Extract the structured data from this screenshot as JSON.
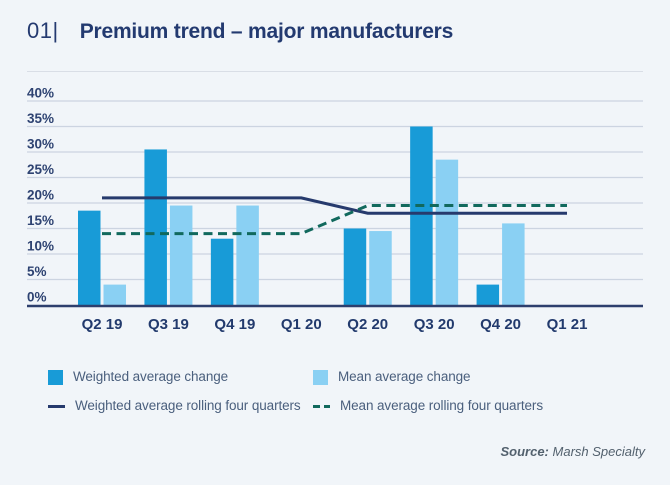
{
  "header": {
    "number": "01|",
    "title": "Premium trend – major manufacturers"
  },
  "chart_data": {
    "type": "bar",
    "categories": [
      "Q2 19",
      "Q3 19",
      "Q4 19",
      "Q1 20",
      "Q2 20",
      "Q3 20",
      "Q4 20",
      "Q1 21"
    ],
    "yticks": [
      "0%",
      "5%",
      "10%",
      "15%",
      "20%",
      "25%",
      "30%",
      "35%",
      "40%"
    ],
    "ylim": [
      0,
      40
    ],
    "grid": true,
    "legend_position": "bottom",
    "series": [
      {
        "name": "Weighted average change",
        "type": "bar",
        "color": "#189bd7",
        "values": [
          18.5,
          30.5,
          13,
          null,
          15,
          35,
          4,
          null
        ]
      },
      {
        "name": "Mean average change",
        "type": "bar",
        "color": "#8ad0f3",
        "values": [
          4,
          19.5,
          19.5,
          null,
          14.5,
          28.5,
          16,
          null
        ]
      },
      {
        "name": "Weighted average rolling four quarters",
        "type": "line",
        "dash": "solid",
        "color": "#263a6d",
        "values": [
          21,
          21,
          21,
          21,
          18,
          18,
          18,
          18
        ]
      },
      {
        "name": "Mean average rolling four quarters",
        "type": "line",
        "dash": "dashed",
        "color": "#11695d",
        "values": [
          14,
          14,
          14,
          14,
          19.5,
          19.5,
          19.5,
          19.5
        ]
      }
    ]
  },
  "source": {
    "label": "Source:",
    "value": "Marsh Specialty"
  },
  "colors": {
    "background": "#f1f5f9",
    "gridline": "#ccd4e1",
    "baseline": "#2d3f6d",
    "axis_label": "#2e4372",
    "x_label": "#223a6d"
  }
}
